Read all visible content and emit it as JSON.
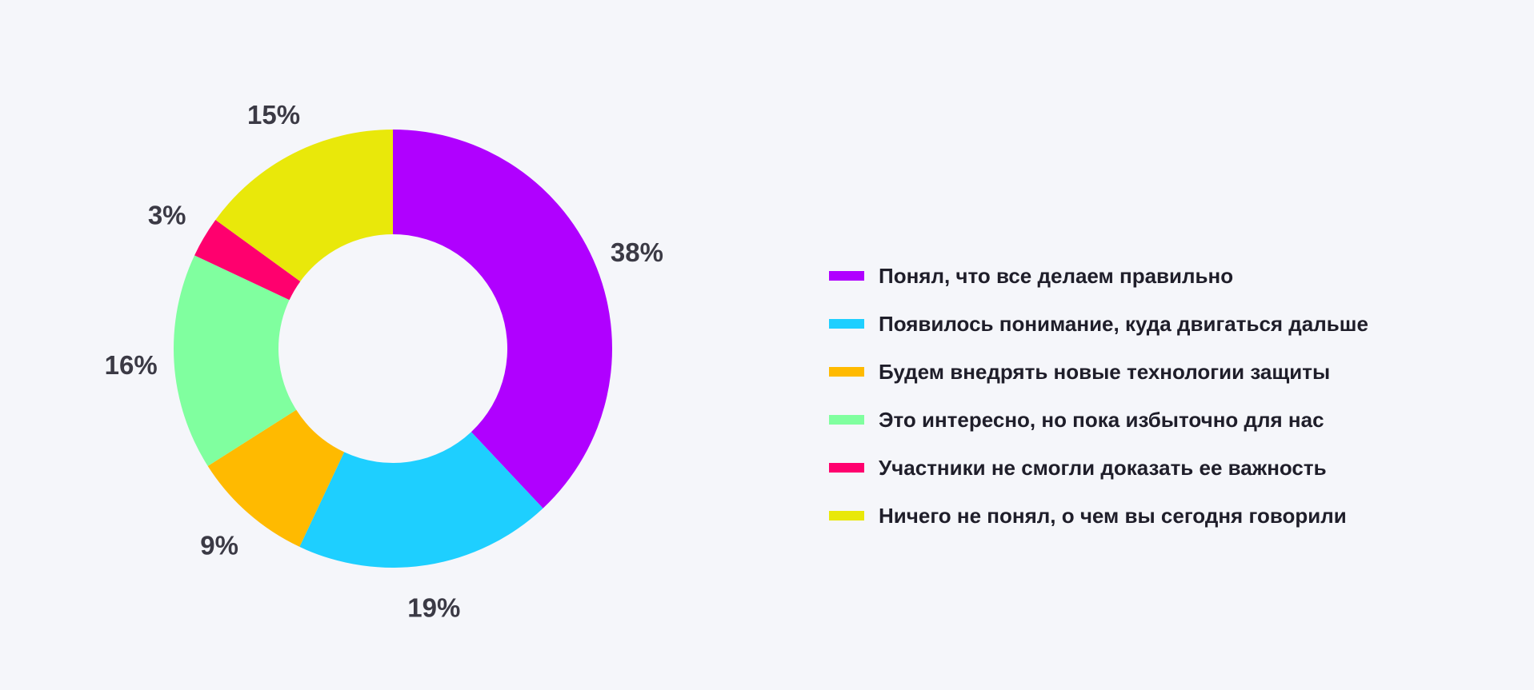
{
  "chart_data": {
    "type": "pie",
    "title": "",
    "hole": true,
    "legend_position": "right",
    "slices": [
      {
        "name": "Понял, что все делаем правильно",
        "value": 38,
        "label": "38%",
        "color": "#b000ff"
      },
      {
        "name": "Появилось понимание, куда двигаться дальше",
        "value": 19,
        "label": "19%",
        "color": "#1ecfff"
      },
      {
        "name": "Будем внедрять новые технологии защиты",
        "value": 9,
        "label": "9%",
        "color": "#ffba00"
      },
      {
        "name": "Это интересно, но пока избыточно для нас",
        "value": 16,
        "label": "16%",
        "color": "#80ff9f"
      },
      {
        "name": "Участники не смогли доказать ее важность",
        "value": 3,
        "label": "3%",
        "color": "#ff006e"
      },
      {
        "name": "Ничего не понял, о чем вы сегодня говорили",
        "value": 15,
        "label": "15%",
        "color": "#e9e80a"
      }
    ]
  }
}
